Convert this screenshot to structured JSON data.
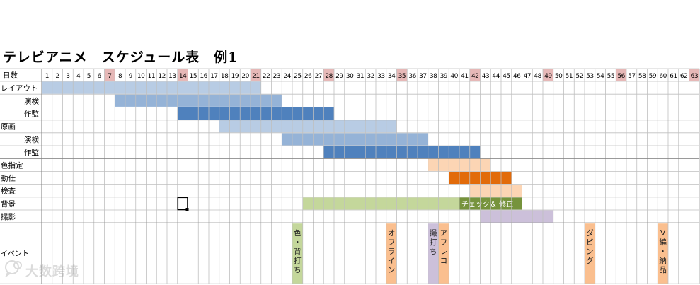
{
  "title": "テレビアニメ　スケジュール表　例1",
  "chart_data": {
    "type": "gantt",
    "title": "テレビアニメ　スケジュール表　例1",
    "day_header_label": "日数",
    "days": 63,
    "highlight_days": [
      7,
      14,
      21,
      28,
      35,
      42,
      49,
      56,
      63
    ],
    "highlight_color": "#e6b8b7",
    "rows": [
      {
        "label": "レイアウト",
        "indent": false
      },
      {
        "label": "演検",
        "indent": true
      },
      {
        "label": "作監",
        "indent": true
      },
      {
        "label": "原画",
        "indent": false
      },
      {
        "label": "演検",
        "indent": true
      },
      {
        "label": "作監",
        "indent": true
      },
      {
        "label": "色指定",
        "indent": false
      },
      {
        "label": "動仕",
        "indent": false
      },
      {
        "label": "検査",
        "indent": false
      },
      {
        "label": "背景",
        "indent": false
      },
      {
        "label": "撮影",
        "indent": false
      }
    ],
    "event_row_label": "イベント",
    "tasks": [
      {
        "row": 0,
        "start": 1,
        "end": 21,
        "color": "#b8cce4"
      },
      {
        "row": 1,
        "start": 8,
        "end": 23,
        "color": "#95b3d7"
      },
      {
        "row": 2,
        "start": 14,
        "end": 28,
        "color": "#4f81bd"
      },
      {
        "row": 3,
        "start": 18,
        "end": 34,
        "color": "#b8cce4"
      },
      {
        "row": 4,
        "start": 24,
        "end": 37,
        "color": "#95b3d7"
      },
      {
        "row": 5,
        "start": 28,
        "end": 42,
        "color": "#4f81bd"
      },
      {
        "row": 6,
        "start": 38,
        "end": 43,
        "color": "#fcd5b4"
      },
      {
        "row": 7,
        "start": 40,
        "end": 45,
        "color": "#e26b0a"
      },
      {
        "row": 8,
        "start": 42,
        "end": 46,
        "color": "#fcd5b4"
      },
      {
        "row": 9,
        "start": 26,
        "end": 41,
        "color": "#c4d79b"
      },
      {
        "row": 9,
        "start": 41,
        "end": 46,
        "color": "#76933c",
        "label": "チェック＆ 修正"
      },
      {
        "row": 10,
        "start": 43,
        "end": 49,
        "color": "#ccc0da"
      }
    ],
    "events": [
      {
        "day": 25,
        "label": "色・背打ち",
        "color": "#c4d79b"
      },
      {
        "day": 34,
        "label": "オフライン",
        "color": "#fabf8f"
      },
      {
        "day": 38,
        "label": "撮打ち",
        "color": "#ccc0da"
      },
      {
        "day": 39,
        "label": "アフレコ",
        "color": "#fabf8f"
      },
      {
        "day": 53,
        "label": "ダビング",
        "color": "#fabf8f"
      },
      {
        "day": 60,
        "label": "V編・納品",
        "color": "#fabf8f"
      }
    ],
    "selected_cell": {
      "row": 9,
      "day": 14
    }
  },
  "watermark": {
    "text": "大数跨境",
    "icon": "speech-bubble-logo-icon"
  }
}
